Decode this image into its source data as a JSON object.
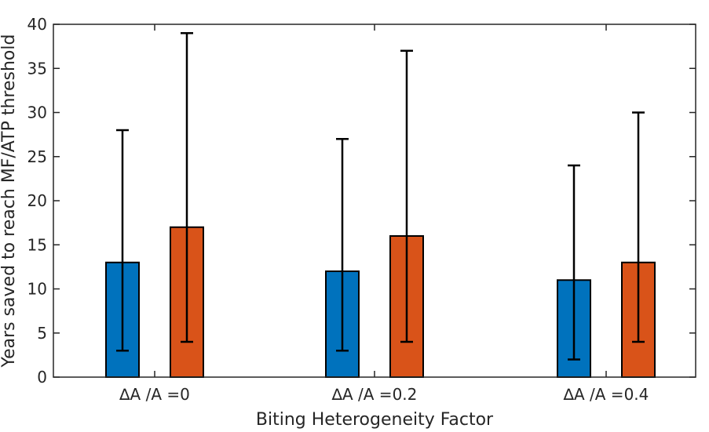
{
  "chart_data": {
    "type": "bar",
    "title": "",
    "xlabel": "Biting Heterogeneity Factor",
    "ylabel": "Years saved to reach MF/ATP threshold",
    "ylim": [
      0,
      40
    ],
    "yticks": [
      0,
      5,
      10,
      15,
      20,
      25,
      30,
      35,
      40
    ],
    "grid": false,
    "legend": "none",
    "categories": [
      "∆A /A =0",
      "∆A /A =0.2",
      "∆A /A =0.4"
    ],
    "series": [
      {
        "color": "#0072BD",
        "values": [
          13,
          12,
          11
        ],
        "err_low": [
          3,
          3,
          2
        ],
        "err_high": [
          28,
          27,
          24
        ]
      },
      {
        "color": "#D95319",
        "values": [
          17,
          16,
          13
        ],
        "err_low": [
          4,
          4,
          4
        ],
        "err_high": [
          39,
          37,
          30
        ]
      }
    ]
  }
}
